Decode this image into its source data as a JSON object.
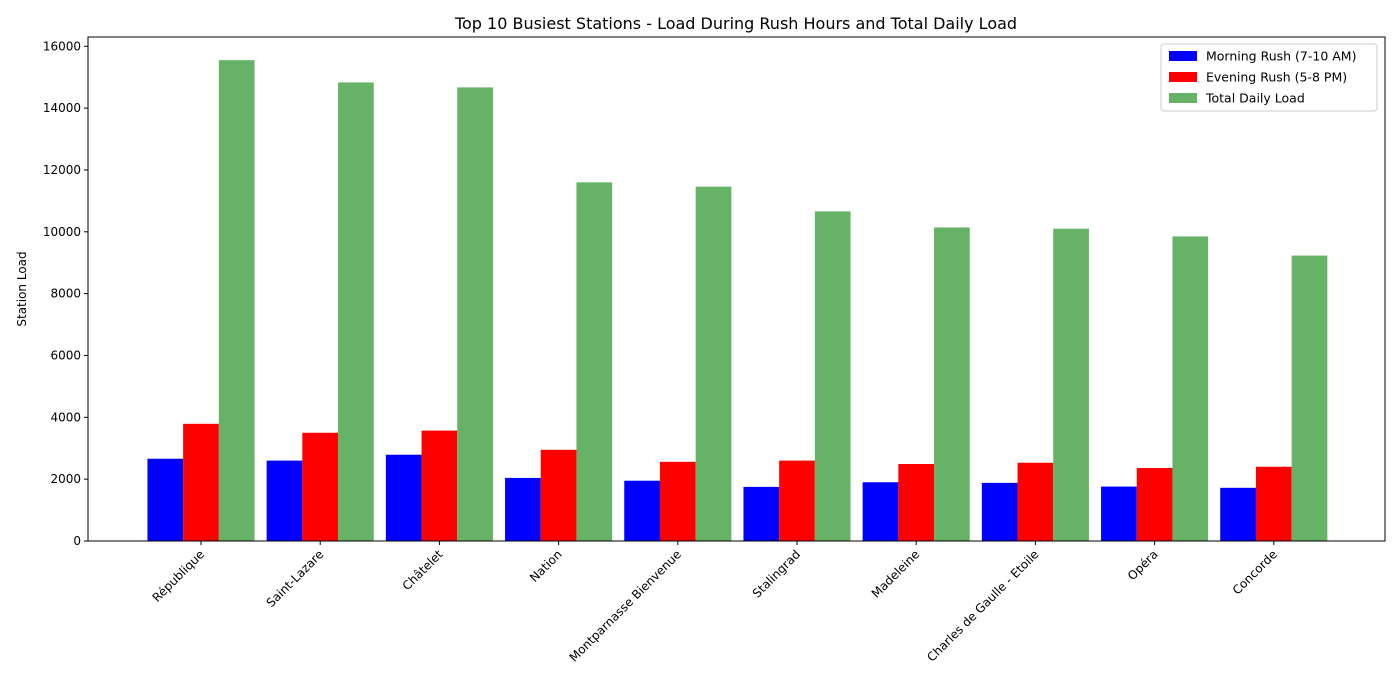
{
  "chart_data": {
    "type": "bar",
    "title": "Top 10 Busiest Stations - Load During Rush Hours and Total Daily Load",
    "xlabel": "",
    "ylabel": "Station Load",
    "ylim": [
      0,
      16300
    ],
    "yticks": [
      0,
      2000,
      4000,
      6000,
      8000,
      10000,
      12000,
      14000,
      16000
    ],
    "categories": [
      "République",
      "Saint-Lazare",
      "Châtelet",
      "Nation",
      "Montparnasse Bienvenue",
      "Stalingrad",
      "Madeleine",
      "Charles de Gaulle - Etoile",
      "Opéra",
      "Concorde"
    ],
    "series": [
      {
        "name": "Morning Rush (7-10 AM)",
        "color": "#0000ff",
        "values": [
          2660,
          2600,
          2790,
          2040,
          1950,
          1750,
          1900,
          1880,
          1760,
          1720
        ]
      },
      {
        "name": "Evening Rush (5-8 PM)",
        "color": "#ff0000",
        "values": [
          3790,
          3500,
          3570,
          2950,
          2560,
          2600,
          2490,
          2530,
          2360,
          2400
        ]
      },
      {
        "name": "Total Daily Load",
        "color": "#66b266",
        "values": [
          15550,
          14830,
          14670,
          11600,
          11460,
          10660,
          10140,
          10100,
          9850,
          9230
        ]
      }
    ],
    "legend_position": "top-right",
    "grid": false
  }
}
